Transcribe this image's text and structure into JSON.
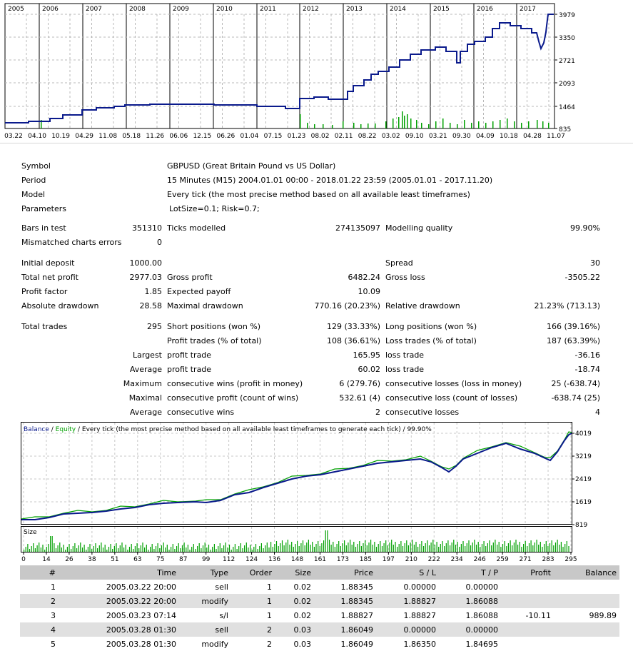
{
  "top_chart": {
    "years": [
      "2005",
      "2006",
      "2007",
      "2008",
      "2009",
      "2010",
      "2011",
      "2012",
      "2013",
      "2014",
      "2015",
      "2016",
      "2017"
    ],
    "y_ticks": [
      "3979",
      "3350",
      "2721",
      "2093",
      "1464",
      "835"
    ],
    "x_ticks": [
      "03.22",
      "04.10",
      "10.19",
      "04.29",
      "11.08",
      "05.18",
      "11.26",
      "06.06",
      "12.15",
      "06.26",
      "01.04",
      "07.15",
      "01.23",
      "08.02",
      "02.11",
      "08.22",
      "03.02",
      "09.10",
      "03.21",
      "09.30",
      "04.09",
      "10.18",
      "04.28",
      "11.07"
    ],
    "colors": {
      "line": "#0a1a8c",
      "volume": "#00a000",
      "grid": "#b8b8b8"
    }
  },
  "report": {
    "symbol": {
      "label": "Symbol",
      "value": "GBPUSD (Great Britain Pound vs US Dollar)"
    },
    "period": {
      "label": "Period",
      "value": "15 Minutes (M15) 2004.01.01 00:00 - 2018.01.22 23:59 (2005.01.01 - 2017.11.20)"
    },
    "model": {
      "label": "Model",
      "value": "Every tick (the most precise method based on all available least timeframes)"
    },
    "parameters": {
      "label": "Parameters",
      "value": "LotSize=0.1; Risk=0.7;"
    },
    "bars_in_test": {
      "label": "Bars in test",
      "value": "351310"
    },
    "ticks_modelled": {
      "label": "Ticks modelled",
      "value": "274135097"
    },
    "modelling_quality": {
      "label": "Modelling quality",
      "value": "99.90%"
    },
    "mismatched": {
      "label": "Mismatched charts errors",
      "value": "0"
    },
    "initial_deposit": {
      "label": "Initial deposit",
      "value": "1000.00"
    },
    "spread": {
      "label": "Spread",
      "value": "30"
    },
    "total_net_profit": {
      "label": "Total net profit",
      "value": "2977.03"
    },
    "gross_profit": {
      "label": "Gross profit",
      "value": "6482.24"
    },
    "gross_loss": {
      "label": "Gross loss",
      "value": "-3505.22"
    },
    "profit_factor": {
      "label": "Profit factor",
      "value": "1.85"
    },
    "expected_payoff": {
      "label": "Expected payoff",
      "value": "10.09"
    },
    "absolute_drawdown": {
      "label": "Absolute drawdown",
      "value": "28.58"
    },
    "maximal_drawdown": {
      "label": "Maximal drawdown",
      "value": "770.16 (20.23%)"
    },
    "relative_drawdown": {
      "label": "Relative drawdown",
      "value": "21.23% (713.13)"
    },
    "total_trades": {
      "label": "Total trades",
      "value": "295"
    },
    "short_positions": {
      "label": "Short positions (won %)",
      "value": "129 (33.33%)"
    },
    "long_positions": {
      "label": "Long positions (won %)",
      "value": "166 (39.16%)"
    },
    "profit_trades": {
      "label": "Profit trades (% of total)",
      "value": "108 (36.61%)"
    },
    "loss_trades": {
      "label": "Loss trades (% of total)",
      "value": "187 (63.39%)"
    },
    "largest": {
      "label": "Largest",
      "profit_label": "profit trade",
      "profit_value": "165.95",
      "loss_label": "loss trade",
      "loss_value": "-36.16"
    },
    "average": {
      "label": "Average",
      "profit_label": "profit trade",
      "profit_value": "60.02",
      "loss_label": "loss trade",
      "loss_value": "-18.74"
    },
    "maximum": {
      "label": "Maximum",
      "wins_label": "consecutive wins (profit in money)",
      "wins_value": "6 (279.76)",
      "losses_label": "consecutive losses (loss in money)",
      "losses_value": "25 (-638.74)"
    },
    "maximal": {
      "label": "Maximal",
      "profit_label": "consecutive profit (count of wins)",
      "profit_value": "532.61 (4)",
      "loss_label": "consecutive loss (count of losses)",
      "loss_value": "-638.74 (25)"
    },
    "average_consec": {
      "label": "Average",
      "wins_label": "consecutive wins",
      "wins_value": "2",
      "losses_label": "consecutive losses",
      "losses_value": "4"
    }
  },
  "balance_chart": {
    "legend_balance": "Balance",
    "legend_sep1": " / ",
    "legend_equity": "Equity",
    "legend_rest": " / Every tick (the most precise method based on all available least timeframes to generate each tick) / 99.90%",
    "y_ticks": [
      "4019",
      "3219",
      "2419",
      "1619",
      "819"
    ],
    "size_label": "Size",
    "x_ticks": [
      "0",
      "14",
      "26",
      "38",
      "51",
      "63",
      "75",
      "87",
      "99",
      "112",
      "124",
      "136",
      "148",
      "161",
      "173",
      "185",
      "197",
      "210",
      "222",
      "234",
      "246",
      "259",
      "271",
      "283",
      "295"
    ],
    "colors": {
      "balance": "#0a1a8c",
      "equity": "#00a000"
    }
  },
  "table": {
    "headers": [
      "#",
      "Time",
      "Type",
      "Order",
      "Size",
      "Price",
      "S / L",
      "T / P",
      "Profit",
      "Balance"
    ],
    "rows": [
      [
        "1",
        "2005.03.22 20:00",
        "sell",
        "1",
        "0.02",
        "1.88345",
        "0.00000",
        "0.00000",
        "",
        ""
      ],
      [
        "2",
        "2005.03.22 20:00",
        "modify",
        "1",
        "0.02",
        "1.88345",
        "1.88827",
        "1.86088",
        "",
        ""
      ],
      [
        "3",
        "2005.03.23 07:14",
        "s/l",
        "1",
        "0.02",
        "1.88827",
        "1.88827",
        "1.86088",
        "-10.11",
        "989.89"
      ],
      [
        "4",
        "2005.03.28 01:30",
        "sell",
        "2",
        "0.03",
        "1.86049",
        "0.00000",
        "0.00000",
        "",
        ""
      ],
      [
        "5",
        "2005.03.28 01:30",
        "modify",
        "2",
        "0.03",
        "1.86049",
        "1.86350",
        "1.84695",
        "",
        ""
      ]
    ]
  }
}
